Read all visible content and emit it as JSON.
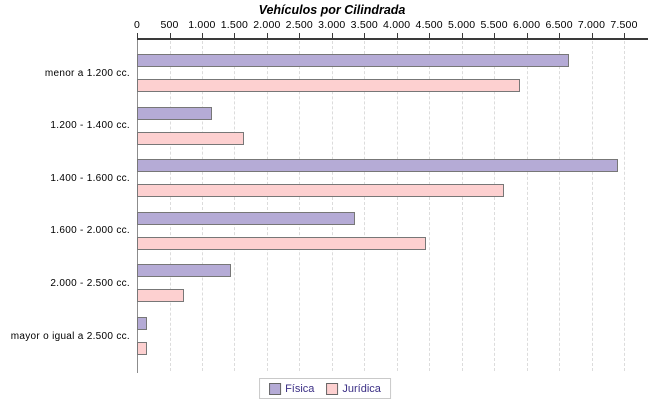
{
  "title": "Vehículos por Cilindrada",
  "chart_data": {
    "type": "bar",
    "orientation": "horizontal",
    "title": "Vehículos por Cilindrada",
    "categories": [
      "menor a 1.200 cc.",
      "1.200 - 1.400 cc.",
      "1.400 - 1.600 cc.",
      "1.600 - 2.000 cc.",
      "2.000 - 2.500 cc.",
      "mayor o igual a 2.500 cc."
    ],
    "series": [
      {
        "name": "Física",
        "slug": "fisica",
        "color": "#b5abd6",
        "values": [
          6650,
          1150,
          7400,
          3350,
          1450,
          160
        ]
      },
      {
        "name": "Jurídica",
        "slug": "juridica",
        "color": "#fdd0d0",
        "values": [
          5900,
          1650,
          5650,
          4450,
          730,
          150
        ]
      }
    ],
    "xlim": [
      0,
      7500
    ],
    "x_tick_values": [
      0,
      500,
      1000,
      1500,
      2000,
      2500,
      3000,
      3500,
      4000,
      4500,
      5000,
      5500,
      6000,
      6500,
      7000,
      7500
    ],
    "x_tick_labels": [
      "0",
      "500",
      "1.000",
      "1.500",
      "2.000",
      "2.500",
      "3.000",
      "3.500",
      "4.000",
      "4.500",
      "5.000",
      "5.500",
      "6.000",
      "6.500",
      "7.000",
      "7.500"
    ],
    "axis_position": "top",
    "grid": "vertical-dashed",
    "legend_position": "bottom",
    "colors": {
      "bar_border": "#777777",
      "axis_line": "#3a3a3a",
      "gridline": "#dcdcdc",
      "legend_text": "#3b2f85",
      "text": "#000000"
    }
  }
}
